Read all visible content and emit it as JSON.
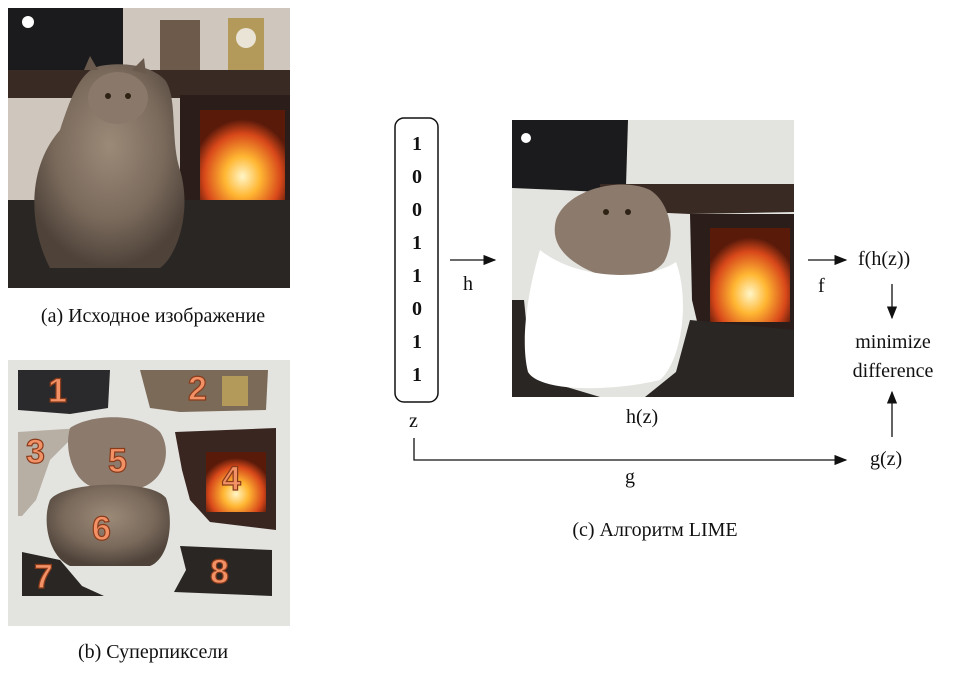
{
  "panels": {
    "a": {
      "caption": "(a) Исходное изображение"
    },
    "b": {
      "caption": "(b) Суперпиксели",
      "superpixels": [
        "1",
        "2",
        "3",
        "4",
        "5",
        "6",
        "7",
        "8"
      ]
    },
    "c": {
      "caption": "(c) Алгоритм LIME"
    }
  },
  "lime": {
    "z_bits": [
      "1",
      "0",
      "0",
      "1",
      "1",
      "0",
      "1",
      "1"
    ],
    "z_label": "z",
    "h_label": "h",
    "hz_label": "h(z)",
    "f_label": "f",
    "fhz_label": "f(h(z))",
    "minimize_line1": "minimize",
    "minimize_line2": "difference",
    "g_label": "g",
    "gz_label": "g(z)"
  },
  "colors": {
    "superpixel_number": "#f29066",
    "background_grey": "#e3e3df"
  }
}
